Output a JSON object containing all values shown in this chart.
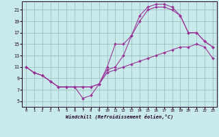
{
  "xlabel": "Windchill (Refroidissement éolien,°C)",
  "bg_color": "#c8eaea",
  "grid_color": "#9fbfbf",
  "line_color": "#993399",
  "xlim_min": -0.5,
  "xlim_max": 23.5,
  "ylim_min": 4.0,
  "ylim_max": 22.5,
  "xticks": [
    0,
    1,
    2,
    3,
    4,
    5,
    6,
    7,
    8,
    9,
    10,
    11,
    12,
    13,
    14,
    15,
    16,
    17,
    18,
    19,
    20,
    21,
    22,
    23
  ],
  "yticks": [
    5,
    7,
    9,
    11,
    13,
    15,
    17,
    19,
    21
  ],
  "curve_bottom_x": [
    0,
    1,
    2,
    3,
    4,
    5,
    6,
    7,
    8,
    9,
    10,
    11,
    12,
    13,
    14,
    15,
    16,
    17,
    18,
    19,
    20,
    21,
    22,
    23
  ],
  "curve_bottom_y": [
    11,
    10,
    9.5,
    8.5,
    7.5,
    7.5,
    7.5,
    5.5,
    6.0,
    8.0,
    10.0,
    10.5,
    11.0,
    11.5,
    12.0,
    12.5,
    13.0,
    13.5,
    14.0,
    14.5,
    14.5,
    15.0,
    14.5,
    12.5
  ],
  "curve_mid_x": [
    0,
    1,
    2,
    3,
    4,
    5,
    6,
    7,
    8,
    9,
    10,
    11,
    12,
    13,
    14,
    15,
    16,
    17,
    18,
    19,
    20,
    21,
    22,
    23
  ],
  "curve_mid_y": [
    11,
    10,
    9.5,
    8.5,
    7.5,
    7.5,
    7.5,
    7.5,
    7.5,
    8.0,
    10.5,
    11.0,
    13.0,
    16.5,
    19.0,
    21.0,
    21.5,
    21.5,
    21.0,
    20.0,
    17.0,
    17.0,
    15.5,
    14.5
  ],
  "curve_top_x": [
    0,
    1,
    2,
    3,
    4,
    5,
    6,
    7,
    8,
    9,
    10,
    11,
    12,
    13,
    14,
    15,
    16,
    17,
    18,
    19,
    20,
    21,
    22,
    23
  ],
  "curve_top_y": [
    11,
    10,
    9.5,
    8.5,
    7.5,
    7.5,
    7.5,
    7.5,
    7.5,
    8.0,
    11.0,
    15.0,
    15.0,
    16.5,
    20.0,
    21.5,
    22.0,
    22.0,
    21.5,
    20.0,
    17.0,
    17.0,
    15.5,
    14.5
  ]
}
